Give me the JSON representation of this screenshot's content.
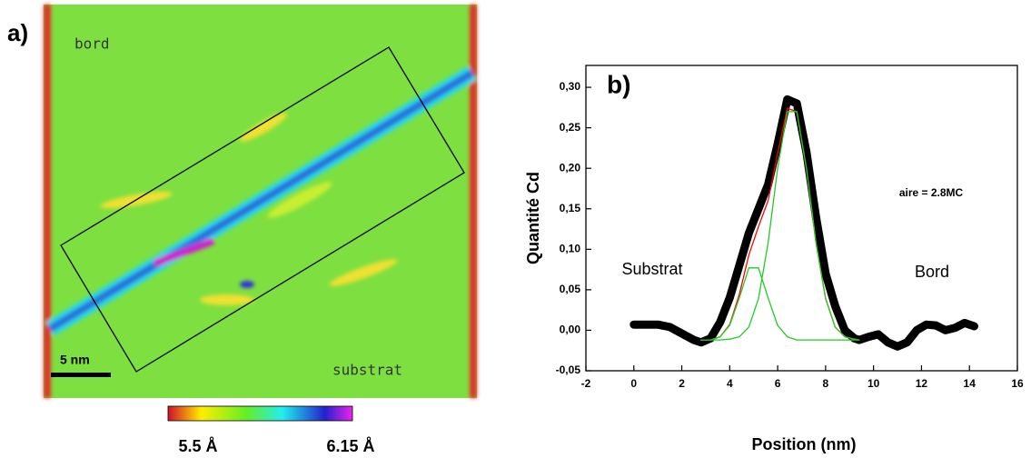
{
  "panel_a": {
    "label": "a)",
    "top_text": "bord",
    "bottom_text": "substrat",
    "scale_bar": "5 nm",
    "colorbar_min": "5.5 Å",
    "colorbar_max": "6.15 Å"
  },
  "chart_data": {
    "type": "line",
    "panel_label": "b)",
    "x_label": "Position (nm)",
    "y_label": "Quantité Cd",
    "annotations": [
      "Substrat",
      "Bord",
      "aire = 2.8MC"
    ],
    "xlim": [
      -2,
      16
    ],
    "xticks": [
      -2,
      0,
      2,
      4,
      6,
      8,
      10,
      12,
      14,
      16
    ],
    "ylim": [
      -0.05,
      0.327
    ],
    "yticks": [
      {
        "value": -0.05,
        "label": "-0,05"
      },
      {
        "value": 0,
        "label": "0,00"
      },
      {
        "value": 0.05,
        "label": "0,05"
      },
      {
        "value": 0.1,
        "label": "0,10"
      },
      {
        "value": 0.15,
        "label": "0,15"
      },
      {
        "value": 0.2,
        "label": "0,20"
      },
      {
        "value": 0.25,
        "label": "0,25"
      },
      {
        "value": 0.3,
        "label": "0,30"
      }
    ],
    "series": [
      {
        "color": "#000000",
        "x": [
          0,
          0.5,
          1,
          1.5,
          2,
          2.5,
          2.8,
          3.2,
          3.6,
          4.0,
          4.4,
          4.8,
          5.2,
          5.6,
          6.0,
          6.4,
          6.8,
          7.2,
          7.6,
          8.0,
          8.4,
          8.8,
          9.2,
          9.4,
          9.8,
          10.2,
          10.6,
          11,
          11.4,
          11.8,
          12.2,
          12.6,
          13,
          13.4,
          13.8,
          14.2
        ],
        "values": [
          0.007,
          0.007,
          0.007,
          0.004,
          -0.004,
          -0.012,
          -0.015,
          -0.01,
          0.01,
          0.04,
          0.08,
          0.12,
          0.15,
          0.18,
          0.23,
          0.285,
          0.28,
          0.22,
          0.14,
          0.07,
          0.03,
          0.0,
          -0.01,
          -0.012,
          -0.008,
          -0.005,
          -0.015,
          -0.02,
          -0.015,
          0.0,
          0.007,
          0.006,
          0.0,
          0.003,
          0.009,
          0.005
        ]
      },
      {
        "color": "#ff0000",
        "x": [
          2.8,
          3.2,
          3.6,
          4.0,
          4.4,
          4.8,
          5.2,
          5.6,
          6.0,
          6.4,
          6.8,
          7.2,
          7.6,
          8.0,
          8.4,
          8.8,
          9.2,
          9.4
        ],
        "values": [
          -0.012,
          -0.012,
          -0.008,
          0.007,
          0.044,
          0.093,
          0.128,
          0.16,
          0.218,
          0.274,
          0.27,
          0.2,
          0.108,
          0.039,
          0.004,
          -0.008,
          -0.011,
          -0.012
        ]
      },
      {
        "color": "#22cc22",
        "x": [
          2.8,
          3.2,
          3.6,
          4.0,
          4.4,
          4.8,
          5.2,
          5.6,
          6.0,
          6.4,
          6.8,
          7.2,
          7.6,
          8.0,
          8.4,
          8.8,
          9.2,
          9.4
        ],
        "values": [
          -0.012,
          -0.012,
          -0.008,
          0.006,
          0.04,
          0.077,
          0.077,
          0.04,
          0.006,
          -0.008,
          -0.012,
          -0.012,
          -0.012,
          -0.012,
          -0.012,
          -0.012,
          -0.012,
          -0.012
        ]
      },
      {
        "color": "#22cc22",
        "x": [
          2.8,
          3.2,
          3.6,
          4.0,
          4.4,
          4.8,
          5.2,
          5.6,
          6.0,
          6.4,
          6.8,
          7.2,
          7.6,
          8.0,
          8.4,
          8.8,
          9.2,
          9.4
        ],
        "values": [
          -0.012,
          -0.012,
          -0.012,
          -0.011,
          -0.008,
          0.004,
          0.039,
          0.108,
          0.2,
          0.27,
          0.27,
          0.2,
          0.108,
          0.039,
          0.004,
          -0.008,
          -0.011,
          -0.012
        ]
      }
    ]
  }
}
